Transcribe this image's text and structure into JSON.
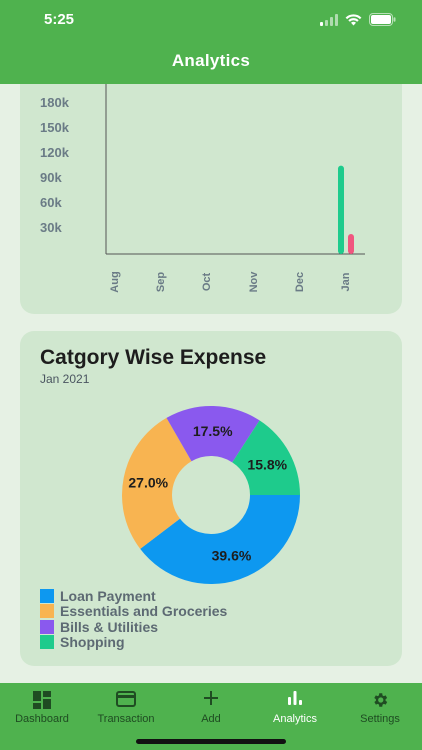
{
  "status": {
    "time": "5:25"
  },
  "header": {
    "title": "Analytics"
  },
  "bar_card": {
    "chart_data": {
      "type": "bar",
      "categories": [
        "Aug",
        "Sep",
        "Oct",
        "Nov",
        "Dec",
        "Jan"
      ],
      "y_ticks": [
        "180k",
        "150k",
        "120k",
        "90k",
        "60k",
        "30k"
      ],
      "series": [
        {
          "values": [
            0,
            0,
            0,
            0,
            0,
            106000
          ],
          "color": "#1ecb8c"
        },
        {
          "values": [
            0,
            0,
            0,
            0,
            0,
            24000
          ],
          "color": "#f0567f"
        }
      ],
      "ylim": [
        0,
        200000
      ]
    }
  },
  "pie_card": {
    "title": "Catgory Wise Expense",
    "subtitle": "Jan 2021",
    "chart_data": {
      "type": "pie",
      "slices": [
        {
          "label": "Loan Payment",
          "value": 39.6,
          "display": "39.6%",
          "color": "#0d98f0"
        },
        {
          "label": "Essentials and Groceries",
          "value": 27.0,
          "display": "27.0%",
          "color": "#f8b451"
        },
        {
          "label": "Bills & Utilities",
          "value": 17.5,
          "display": "17.5%",
          "color": "#8a59ee"
        },
        {
          "label": "Shopping",
          "value": 15.8,
          "display": "15.8%",
          "color": "#1ecb8c"
        }
      ]
    },
    "legend": [
      {
        "label": "Loan Payment",
        "color": "#0d98f0"
      },
      {
        "label": "Essentials and Groceries",
        "color": "#f8b451"
      },
      {
        "label": "Bills & Utilities",
        "color": "#8a59ee"
      },
      {
        "label": "Shopping",
        "color": "#1ecb8c"
      }
    ]
  },
  "tabbar": {
    "tabs": [
      {
        "label": "Dashboard",
        "icon": "dashboard-icon"
      },
      {
        "label": "Transaction",
        "icon": "card-icon"
      },
      {
        "label": "Add",
        "icon": "plus-icon"
      },
      {
        "label": "Analytics",
        "icon": "bar-chart-icon",
        "active": true
      },
      {
        "label": "Settings",
        "icon": "gear-icon"
      }
    ]
  }
}
